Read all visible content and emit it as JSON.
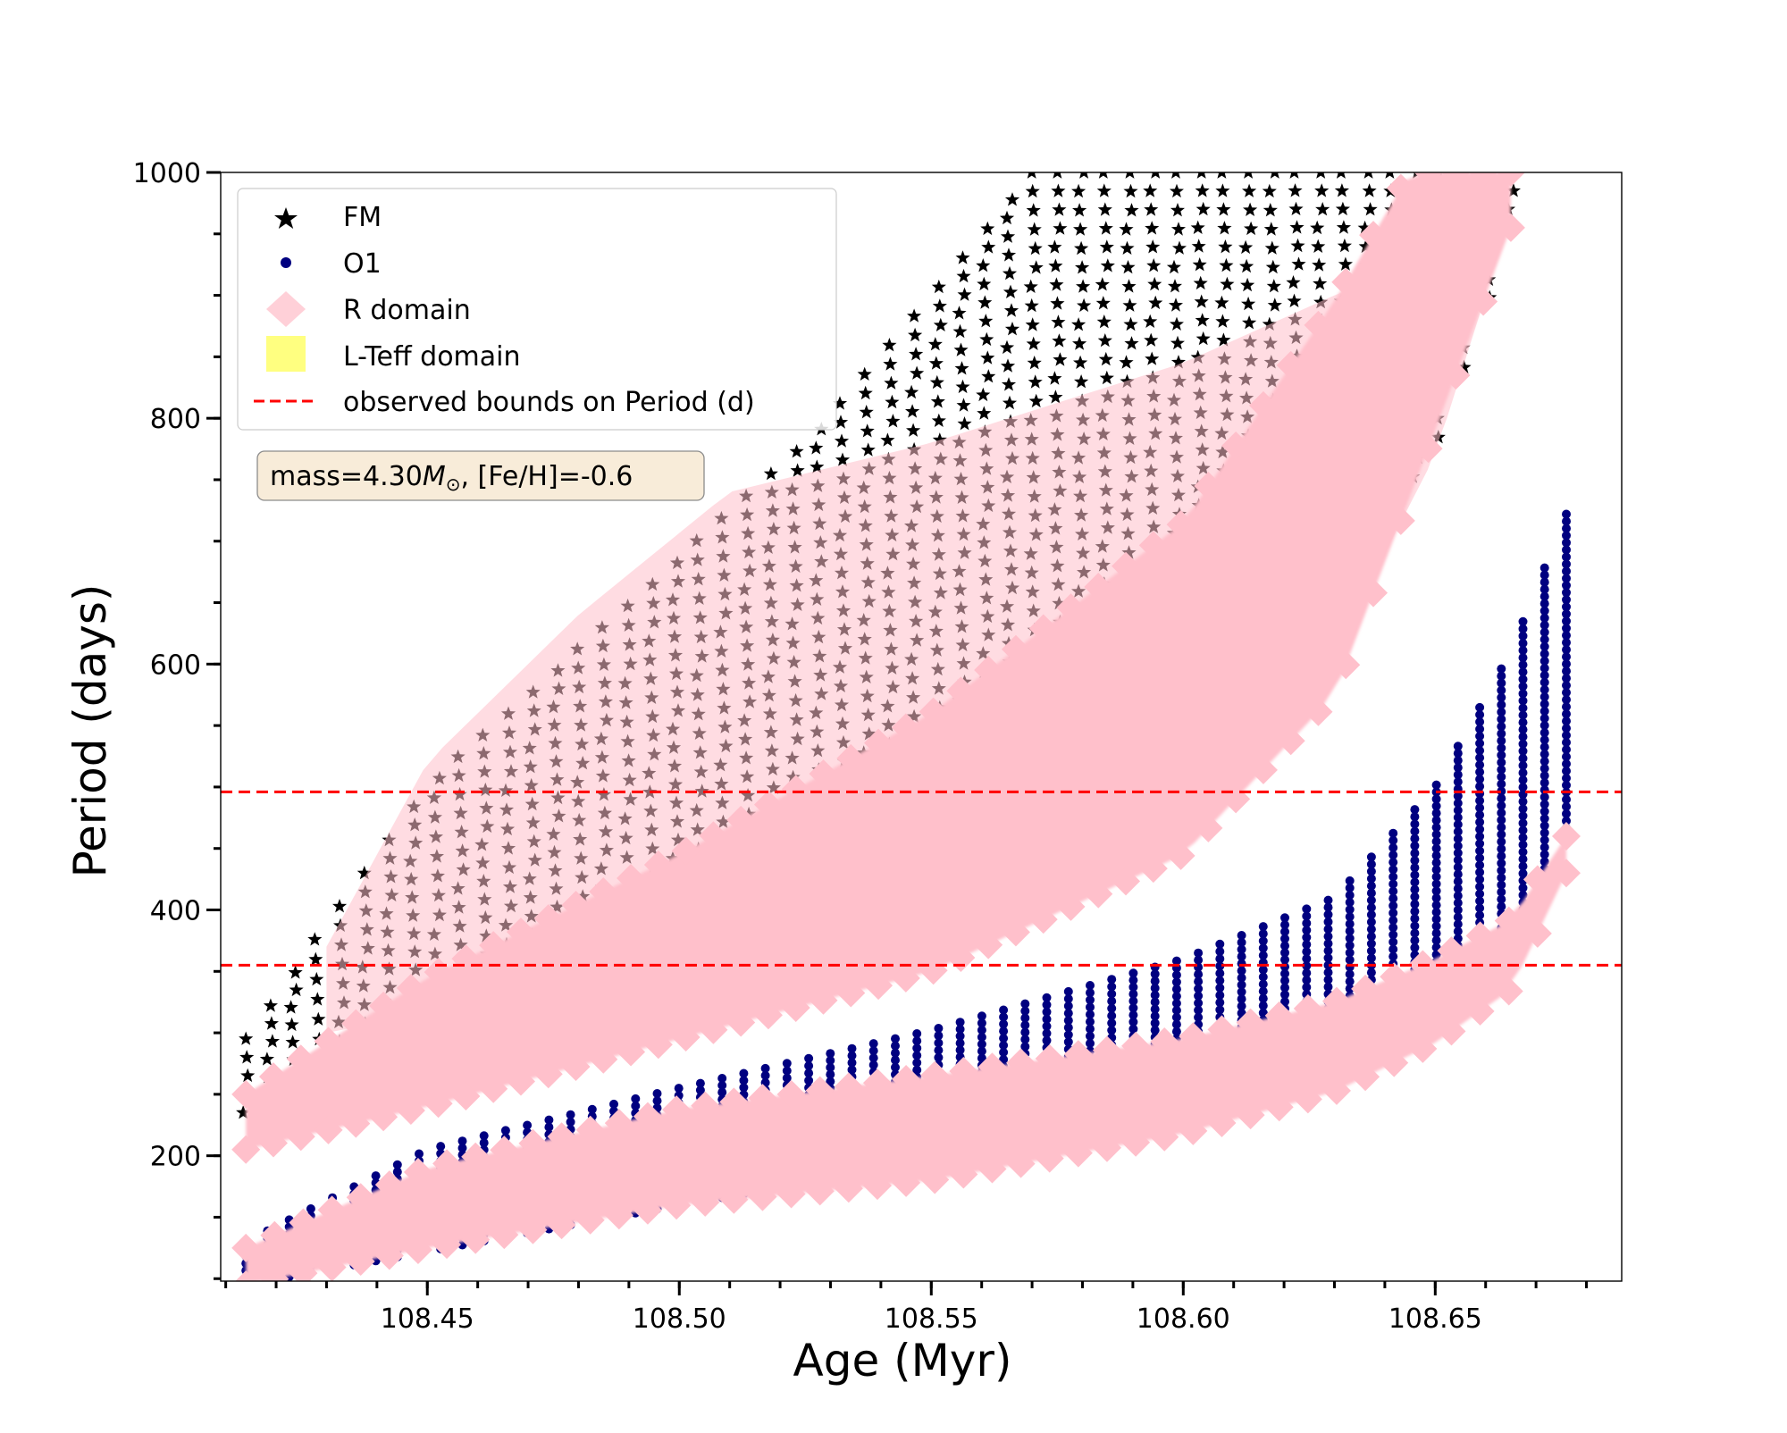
{
  "chart_data": {
    "type": "scatter",
    "title": "",
    "xlabel": "Age (Myr)",
    "ylabel": "Period (days)",
    "xlim": [
      108.409,
      108.687
    ],
    "ylim": [
      98,
      1000
    ],
    "xticks": [
      108.45,
      108.5,
      108.55,
      108.6,
      108.65
    ],
    "xtick_labels": [
      "108.45",
      "108.50",
      "108.55",
      "108.60",
      "108.65"
    ],
    "yticks": [
      200,
      400,
      600,
      800,
      1000
    ],
    "ytick_labels": [
      "200",
      "400",
      "600",
      "800",
      "1000"
    ],
    "x_minor_step": 0.01,
    "y_minor_step": 50,
    "annotation": {
      "prefix": "mass=4.30",
      "symbol": "M",
      "subscript": "⊙",
      "suffix": ", [Fe/H]=-0.6"
    },
    "legend": {
      "position": "upper-left",
      "entries": [
        {
          "label": "FM",
          "marker": "star",
          "color": "#000000"
        },
        {
          "label": "O1",
          "marker": "circle",
          "color": "#000080"
        },
        {
          "label": "R domain",
          "marker": "diamond",
          "color": "#ffc0cb"
        },
        {
          "label": "L-Teff domain",
          "marker": "square",
          "color": "#ffff80"
        },
        {
          "label": "observed bounds on Period (d)",
          "marker": "dashed-line",
          "color": "#ff0000"
        }
      ]
    },
    "hlines": [
      496,
      355
    ],
    "colors": {
      "fm": "#000000",
      "fm_in_r": "#7a5a60",
      "o1": "#000080",
      "r_domain": "#ffc0cb",
      "ltef": "#ffff80",
      "observed": "#ff0000"
    },
    "series": [
      {
        "name": "FM",
        "marker": "star",
        "x_range": [
          108.414,
          108.665
        ],
        "upper_envelope": [
          [
            108.414,
            295
          ],
          [
            108.45,
            500
          ],
          [
            108.5,
            685
          ],
          [
            108.53,
            800
          ],
          [
            108.57,
            1000
          ],
          [
            108.665,
            1000
          ]
        ],
        "lower_envelope": [
          [
            108.414,
            235
          ],
          [
            108.45,
            345
          ],
          [
            108.5,
            428
          ],
          [
            108.55,
            500
          ],
          [
            108.6,
            585
          ],
          [
            108.63,
            660
          ],
          [
            108.65,
            775
          ],
          [
            108.665,
            955
          ]
        ]
      },
      {
        "name": "O1",
        "marker": "circle",
        "x_range": [
          108.414,
          108.676
        ],
        "upper_envelope": [
          [
            108.414,
            130
          ],
          [
            108.45,
            205
          ],
          [
            108.5,
            255
          ],
          [
            108.55,
            302
          ],
          [
            108.6,
            360
          ],
          [
            108.63,
            410
          ],
          [
            108.65,
            500
          ],
          [
            108.665,
            610
          ],
          [
            108.676,
            722
          ]
        ],
        "lower_envelope": [
          [
            108.414,
            95
          ],
          [
            108.5,
            160
          ],
          [
            108.55,
            195
          ],
          [
            108.6,
            245
          ],
          [
            108.63,
            280
          ],
          [
            108.65,
            340
          ],
          [
            108.665,
            385
          ],
          [
            108.676,
            455
          ]
        ]
      },
      {
        "name": "R domain",
        "marker": "diamond",
        "bands": [
          {
            "upper": [
              [
                108.414,
                250
              ],
              [
                108.45,
                345
              ],
              [
                108.5,
                445
              ],
              [
                108.55,
                560
              ],
              [
                108.6,
                715
              ],
              [
                108.63,
                895
              ],
              [
                108.645,
                1000
              ],
              [
                108.665,
                1000
              ]
            ],
            "lower": [
              [
                108.414,
                205
              ],
              [
                108.45,
                240
              ],
              [
                108.5,
                295
              ],
              [
                108.55,
                350
              ],
              [
                108.6,
                445
              ],
              [
                108.63,
                575
              ],
              [
                108.65,
                790
              ],
              [
                108.665,
                955
              ]
            ]
          },
          {
            "upper": [
              [
                108.414,
                125
              ],
              [
                108.45,
                190
              ],
              [
                108.5,
                238
              ],
              [
                108.55,
                265
              ],
              [
                108.6,
                295
              ],
              [
                108.63,
                325
              ],
              [
                108.65,
                360
              ],
              [
                108.665,
                392
              ],
              [
                108.676,
                460
              ]
            ],
            "lower": [
              [
                108.414,
                95
              ],
              [
                108.45,
                125
              ],
              [
                108.5,
                160
              ],
              [
                108.55,
                180
              ],
              [
                108.6,
                218
              ],
              [
                108.63,
                252
              ],
              [
                108.65,
                292
              ],
              [
                108.665,
                335
              ],
              [
                108.676,
                430
              ]
            ]
          },
          {
            "upper": [
              [
                108.43,
                370
              ],
              [
                108.45,
                520
              ],
              [
                108.48,
                640
              ],
              [
                108.51,
                740
              ],
              [
                108.55,
                780
              ],
              [
                108.6,
                845
              ],
              [
                108.63,
                900
              ],
              [
                108.66,
                950
              ]
            ],
            "lower": [
              [
                108.43,
                300
              ],
              [
                108.48,
                340
              ],
              [
                108.52,
                390
              ],
              [
                108.56,
                440
              ],
              [
                108.6,
                520
              ],
              [
                108.63,
                610
              ],
              [
                108.65,
                770
              ],
              [
                108.66,
                900
              ]
            ]
          }
        ]
      },
      {
        "name": "L-Teff domain",
        "marker": "square",
        "points": []
      }
    ]
  }
}
